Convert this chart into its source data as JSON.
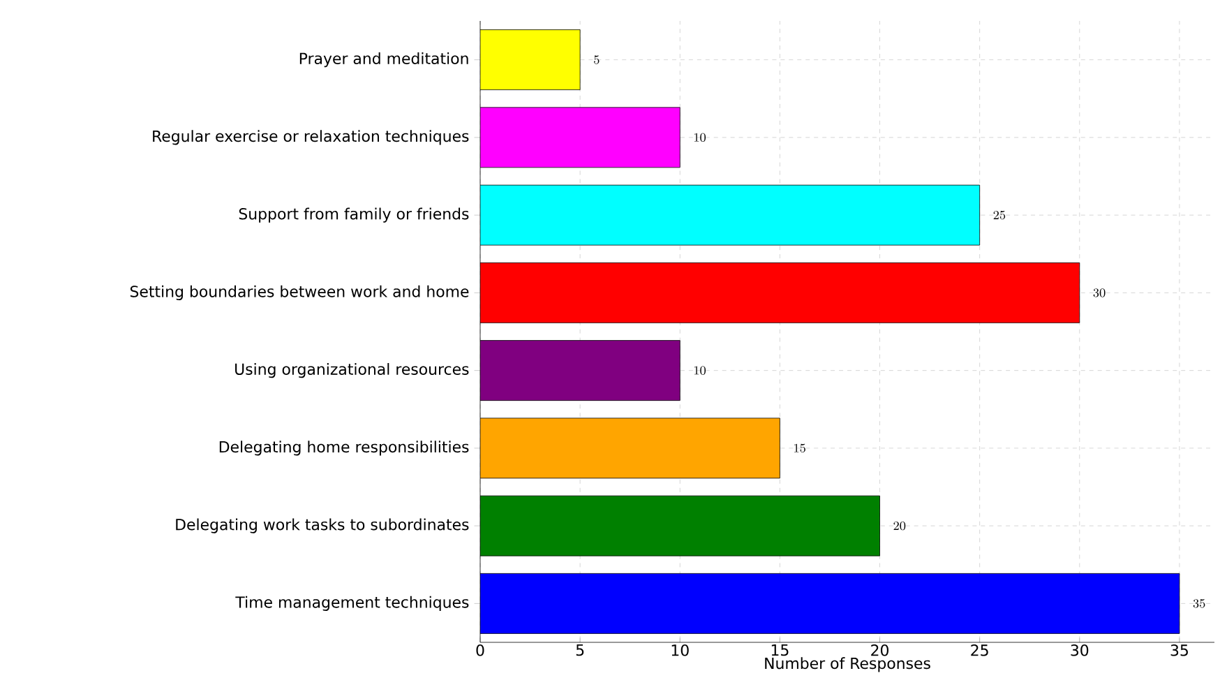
{
  "chart_data": {
    "type": "bar",
    "orientation": "horizontal",
    "xlabel": "Number of Responses",
    "categories": [
      "Prayer and meditation",
      "Regular exercise or relaxation techniques",
      "Support from family or friends",
      "Setting boundaries between work and home",
      "Using organizational resources",
      "Delegating home responsibilities",
      "Delegating work tasks to subordinates",
      "Time management techniques"
    ],
    "values": [
      5,
      10,
      25,
      30,
      10,
      15,
      20,
      35
    ],
    "colors": [
      "#ffff00",
      "#ff00ff",
      "#00ffff",
      "#ff0000",
      "#800080",
      "#ffa500",
      "#008000",
      "#0000ff"
    ],
    "xlim": [
      0,
      36.75
    ],
    "xticks": [
      0,
      5,
      10,
      15,
      20,
      25,
      30,
      35
    ],
    "data_labels": true,
    "grid": true
  }
}
